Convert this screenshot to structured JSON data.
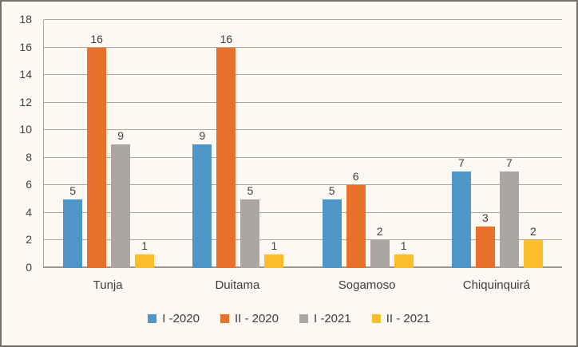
{
  "chart_data": {
    "type": "bar",
    "title": "",
    "xlabel": "",
    "ylabel": "",
    "categories": [
      "Tunja",
      "Duitama",
      "Sogamoso",
      "Chiquinquirá"
    ],
    "series": [
      {
        "name": "I -2020",
        "color": "#4E95C9",
        "values": [
          5,
          9,
          5,
          7
        ]
      },
      {
        "name": "II - 2020",
        "color": "#E7702A",
        "values": [
          16,
          16,
          6,
          3
        ]
      },
      {
        "name": "I -2021",
        "color": "#ACA6A3",
        "values": [
          9,
          5,
          2,
          7
        ]
      },
      {
        "name": "II - 2021",
        "color": "#FBBD2B",
        "values": [
          1,
          1,
          1,
          2
        ]
      }
    ],
    "data_labels_shown": true,
    "ylim": [
      0,
      18
    ],
    "ytick_step": 2,
    "grid": true,
    "legend_position": "bottom"
  },
  "colors": {
    "background": "#FDF9F2",
    "border": "#76726A",
    "gridline": "#ABA69E",
    "axis": "#9C978E",
    "text": "#3F3F3F"
  }
}
